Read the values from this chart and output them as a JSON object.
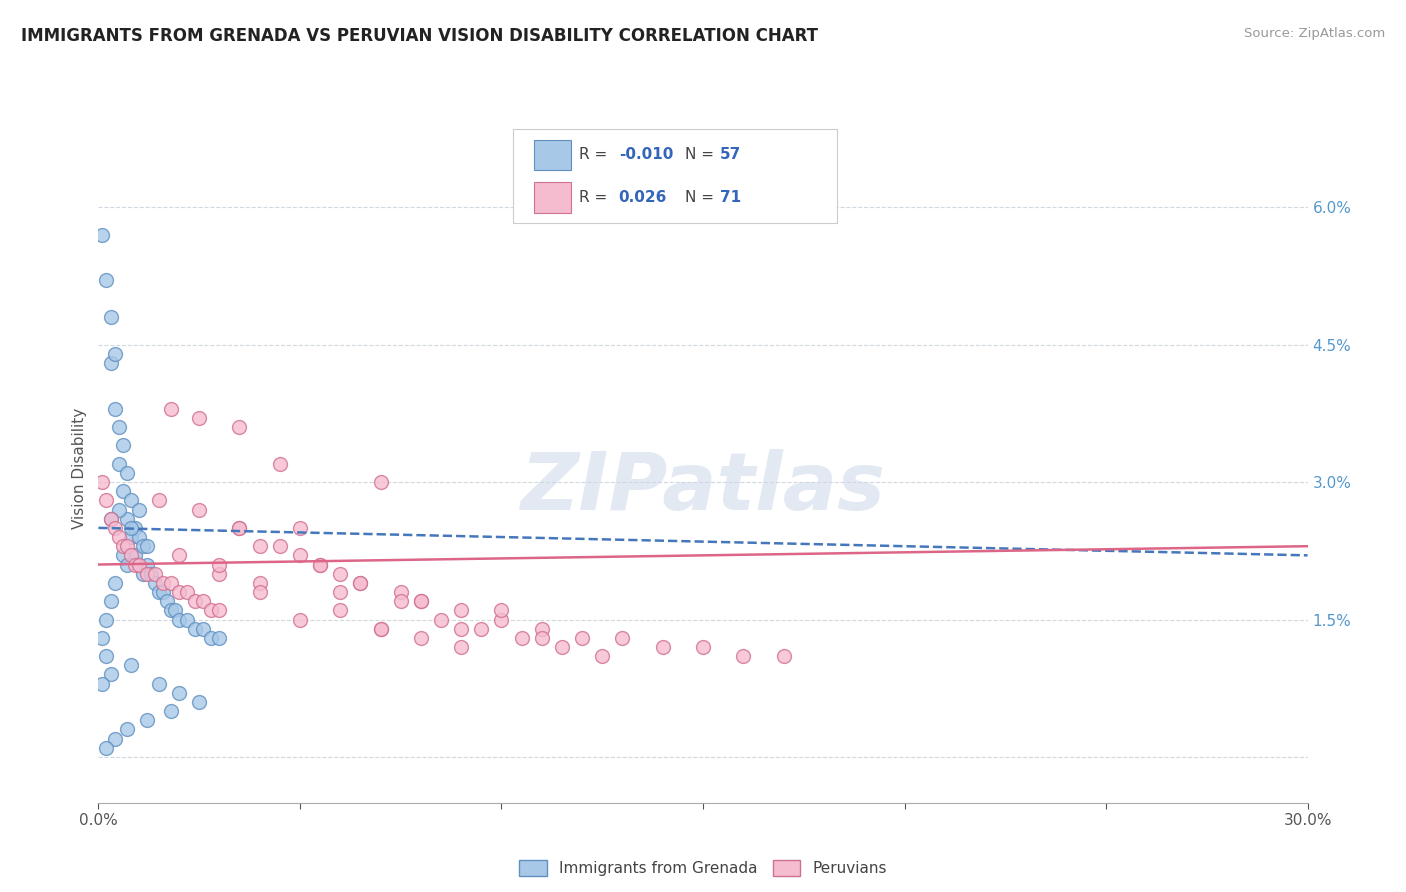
{
  "title": "IMMIGRANTS FROM GRENADA VS PERUVIAN VISION DISABILITY CORRELATION CHART",
  "source": "Source: ZipAtlas.com",
  "ylabel": "Vision Disability",
  "xlim": [
    0.0,
    0.3
  ],
  "ylim": [
    -0.005,
    0.068
  ],
  "xtick_vals": [
    0.0,
    0.05,
    0.1,
    0.15,
    0.2,
    0.25,
    0.3
  ],
  "xticklabels": [
    "0.0%",
    "",
    "",
    "",
    "",
    "",
    "30.0%"
  ],
  "ytick_vals": [
    0.0,
    0.015,
    0.03,
    0.045,
    0.06
  ],
  "yticklabels_right": [
    "",
    "1.5%",
    "3.0%",
    "4.5%",
    "6.0%"
  ],
  "blue_color": "#a8c8e8",
  "blue_edge": "#6090c0",
  "pink_color": "#f5bcd0",
  "pink_edge": "#d07090",
  "trend_blue_color": "#4477bb",
  "trend_pink_color": "#dd6688",
  "legend_label_blue": "Immigrants from Grenada",
  "legend_label_pink": "Peruvians",
  "watermark": "ZIPatlas",
  "background_color": "#ffffff",
  "grid_color": "#d0d8e0",
  "R_blue_str": "-0.010",
  "N_blue_str": "57",
  "R_pink_str": "0.026",
  "N_pink_str": "71",
  "blue_scatter_x": [
    0.001,
    0.002,
    0.003,
    0.003,
    0.004,
    0.004,
    0.005,
    0.005,
    0.006,
    0.006,
    0.007,
    0.007,
    0.008,
    0.008,
    0.009,
    0.009,
    0.01,
    0.01,
    0.011,
    0.011,
    0.012,
    0.013,
    0.014,
    0.015,
    0.016,
    0.017,
    0.018,
    0.019,
    0.02,
    0.022,
    0.024,
    0.026,
    0.028,
    0.03,
    0.01,
    0.005,
    0.003,
    0.008,
    0.012,
    0.006,
    0.007,
    0.004,
    0.003,
    0.002,
    0.001,
    0.002,
    0.003,
    0.008,
    0.015,
    0.02,
    0.025,
    0.018,
    0.012,
    0.007,
    0.004,
    0.002,
    0.001
  ],
  "blue_scatter_y": [
    0.057,
    0.052,
    0.043,
    0.048,
    0.038,
    0.044,
    0.032,
    0.036,
    0.029,
    0.034,
    0.026,
    0.031,
    0.024,
    0.028,
    0.022,
    0.025,
    0.021,
    0.024,
    0.02,
    0.023,
    0.021,
    0.02,
    0.019,
    0.018,
    0.018,
    0.017,
    0.016,
    0.016,
    0.015,
    0.015,
    0.014,
    0.014,
    0.013,
    0.013,
    0.027,
    0.027,
    0.026,
    0.025,
    0.023,
    0.022,
    0.021,
    0.019,
    0.017,
    0.015,
    0.013,
    0.011,
    0.009,
    0.01,
    0.008,
    0.007,
    0.006,
    0.005,
    0.004,
    0.003,
    0.002,
    0.001,
    0.008
  ],
  "pink_scatter_x": [
    0.001,
    0.002,
    0.003,
    0.004,
    0.005,
    0.006,
    0.007,
    0.008,
    0.009,
    0.01,
    0.012,
    0.014,
    0.016,
    0.018,
    0.02,
    0.022,
    0.024,
    0.026,
    0.028,
    0.03,
    0.035,
    0.04,
    0.045,
    0.05,
    0.055,
    0.06,
    0.065,
    0.07,
    0.075,
    0.08,
    0.09,
    0.1,
    0.11,
    0.12,
    0.13,
    0.14,
    0.15,
    0.16,
    0.17,
    0.018,
    0.025,
    0.035,
    0.05,
    0.07,
    0.09,
    0.11,
    0.03,
    0.04,
    0.06,
    0.08,
    0.1,
    0.02,
    0.03,
    0.04,
    0.05,
    0.06,
    0.07,
    0.08,
    0.09,
    0.015,
    0.025,
    0.035,
    0.045,
    0.055,
    0.065,
    0.075,
    0.085,
    0.095,
    0.105,
    0.115,
    0.125
  ],
  "pink_scatter_y": [
    0.03,
    0.028,
    0.026,
    0.025,
    0.024,
    0.023,
    0.023,
    0.022,
    0.021,
    0.021,
    0.02,
    0.02,
    0.019,
    0.019,
    0.018,
    0.018,
    0.017,
    0.017,
    0.016,
    0.016,
    0.025,
    0.023,
    0.032,
    0.022,
    0.021,
    0.02,
    0.019,
    0.03,
    0.018,
    0.017,
    0.016,
    0.015,
    0.014,
    0.013,
    0.013,
    0.012,
    0.012,
    0.011,
    0.011,
    0.038,
    0.037,
    0.036,
    0.025,
    0.014,
    0.014,
    0.013,
    0.02,
    0.019,
    0.018,
    0.017,
    0.016,
    0.022,
    0.021,
    0.018,
    0.015,
    0.016,
    0.014,
    0.013,
    0.012,
    0.028,
    0.027,
    0.025,
    0.023,
    0.021,
    0.019,
    0.017,
    0.015,
    0.014,
    0.013,
    0.012,
    0.011
  ]
}
